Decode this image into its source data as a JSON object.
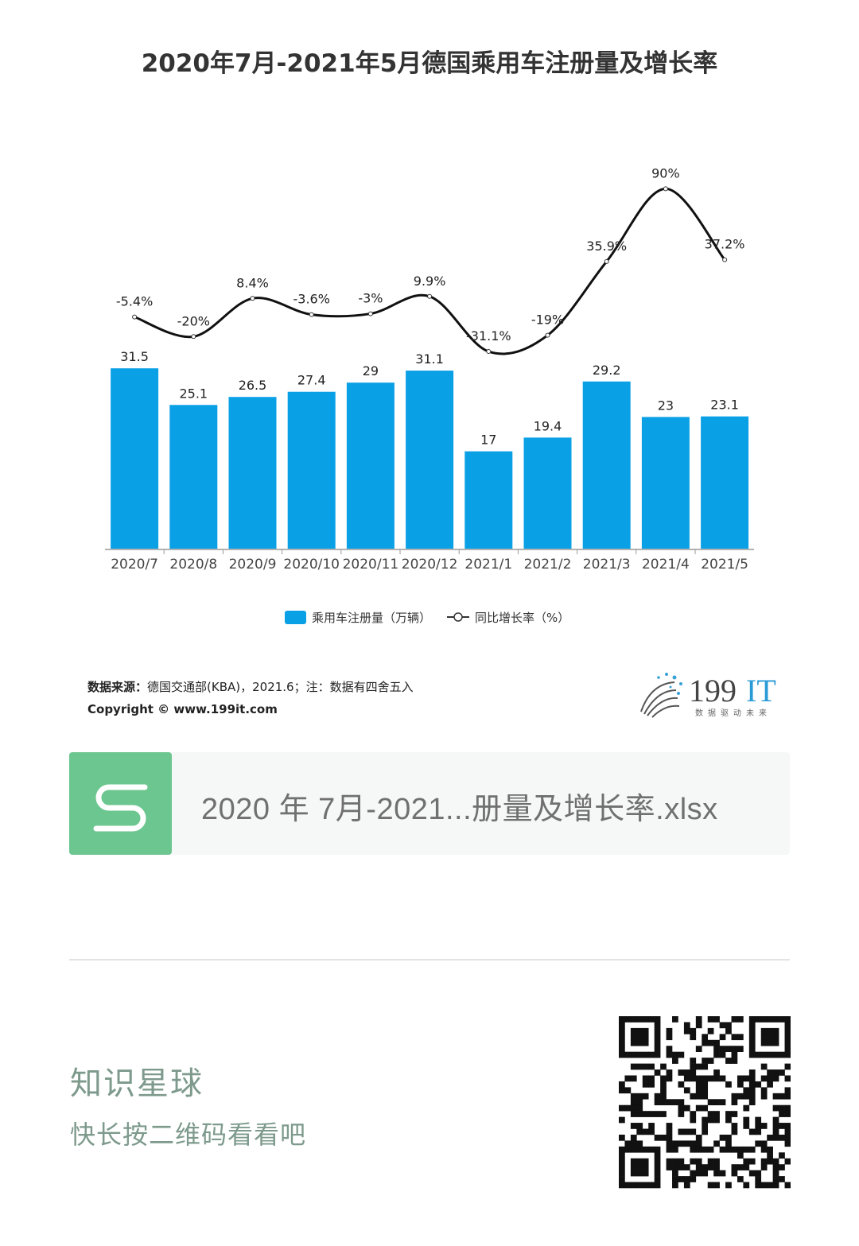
{
  "chart_data": {
    "type": "bar+line",
    "title": "2020年7月-2021年5月德国乘用车注册量及增长率",
    "categories": [
      "2020/7",
      "2020/8",
      "2020/9",
      "2020/10",
      "2020/11",
      "2020/12",
      "2021/1",
      "2021/2",
      "2021/3",
      "2021/4",
      "2021/5"
    ],
    "series": [
      {
        "name": "乘用车注册量（万辆）",
        "type": "bar",
        "color": "#0aa0e6",
        "values": [
          31.5,
          25.1,
          26.5,
          27.4,
          29,
          31.1,
          17,
          19.4,
          29.2,
          23,
          23.1
        ],
        "labels": [
          "31.5",
          "25.1",
          "26.5",
          "27.4",
          "29",
          "31.1",
          "17",
          "19.4",
          "29.2",
          "23",
          "23.1"
        ]
      },
      {
        "name": "同比增长率（%）",
        "type": "line",
        "color": "#111111",
        "values": [
          -5.4,
          -20,
          8.4,
          -3.6,
          -3,
          9.9,
          -31.1,
          -19,
          35.9,
          90,
          37.2
        ],
        "labels": [
          "-5.4%",
          "-20%",
          "8.4%",
          "-3.6%",
          "-3%",
          "9.9%",
          "-31.1%",
          "-19%",
          "35.9%",
          "90%",
          "37.2%"
        ]
      }
    ],
    "legend_placement": "bottom",
    "grid": false
  },
  "source": {
    "label": "数据来源：",
    "text": "德国交通部(KBA)，2021.6；注：数据有四舍五入",
    "copyright": "Copyright ©   www.199it.com"
  },
  "logo": {
    "text": "199IT",
    "tagline": "数据驱动未来"
  },
  "file": {
    "icon": "spreadsheet-s-icon",
    "name": "2020 年 7月-2021...册量及增长率.xlsx"
  },
  "footer": {
    "title": "知识星球",
    "hint": "快长按二维码看看吧"
  }
}
